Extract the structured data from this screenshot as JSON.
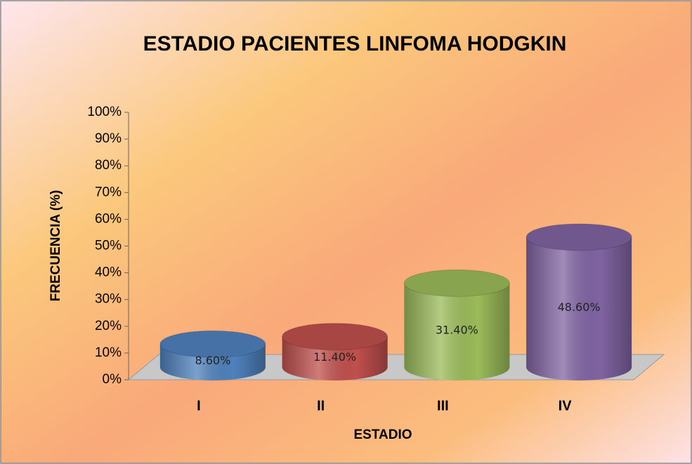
{
  "chart_data": {
    "type": "bar3d",
    "title": "ESTADIO PACIENTES LINFOMA HODGKIN",
    "x_label": "ESTADIO",
    "y_label": "FRECUENCIA (%)",
    "categories": [
      "I",
      "II",
      "III",
      "IV"
    ],
    "values": [
      8.6,
      11.4,
      31.4,
      48.6
    ],
    "value_labels": [
      "8.60%",
      "11.40%",
      "31.40%",
      "48.60%"
    ],
    "colors": [
      "#4f81bd",
      "#c0504d",
      "#9bbb59",
      "#8064a2"
    ],
    "ylim": [
      0,
      100
    ],
    "yticks": [
      {
        "value": 0,
        "label": "0%"
      },
      {
        "value": 10,
        "label": "10%"
      },
      {
        "value": 20,
        "label": "20%"
      },
      {
        "value": 30,
        "label": "30%"
      },
      {
        "value": 40,
        "label": "40%"
      },
      {
        "value": 50,
        "label": "50%"
      },
      {
        "value": 60,
        "label": "60%"
      },
      {
        "value": 70,
        "label": "70%"
      },
      {
        "value": 80,
        "label": "80%"
      },
      {
        "value": 90,
        "label": "90%"
      },
      {
        "value": 100,
        "label": "100%"
      }
    ]
  }
}
